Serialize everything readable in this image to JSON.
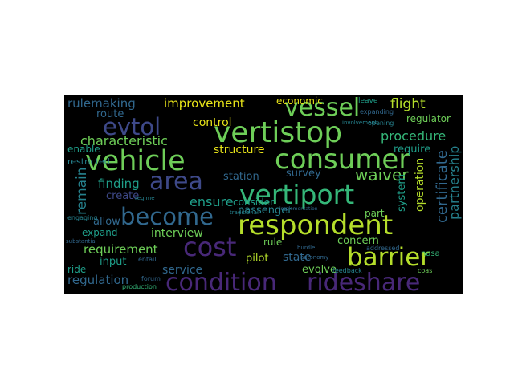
{
  "palette": {
    "lightgreen": "#b5de2b",
    "green": "#6ece58",
    "seagreen": "#35b779",
    "teal": "#1f9e89",
    "blue": "#26828e",
    "steel": "#31688e",
    "indigo": "#3e4989",
    "purple": "#482878",
    "dark": "#440154",
    "yellow": "#e8e419"
  },
  "words": [
    {
      "id": "condition",
      "text": "condition",
      "color": "purple"
    },
    {
      "id": "rideshare",
      "text": "rideshare",
      "color": "purple"
    },
    {
      "id": "barrier",
      "text": "barrier",
      "color": "lightgreen"
    },
    {
      "id": "respondent",
      "text": "respondent",
      "color": "lightgreen"
    },
    {
      "id": "vertiport",
      "text": "vertiport",
      "color": "seagreen"
    },
    {
      "id": "vertistop",
      "text": "vertistop",
      "color": "green"
    },
    {
      "id": "vessel",
      "text": "vessel",
      "color": "green"
    },
    {
      "id": "consumer",
      "text": "consumer",
      "color": "green"
    },
    {
      "id": "vehicle",
      "text": "vehicle",
      "color": "green"
    },
    {
      "id": "evtol",
      "text": "evtol",
      "color": "indigo"
    },
    {
      "id": "cost",
      "text": "cost",
      "color": "purple"
    },
    {
      "id": "area",
      "text": "area",
      "color": "indigo"
    },
    {
      "id": "become",
      "text": "become",
      "color": "steel"
    },
    {
      "id": "rulemaking",
      "text": "rulemaking",
      "color": "steel"
    },
    {
      "id": "improvement",
      "text": "improvement",
      "color": "yellow"
    },
    {
      "id": "economic",
      "text": "economic",
      "color": "yellow"
    },
    {
      "id": "flight",
      "text": "flight",
      "color": "lightgreen"
    },
    {
      "id": "route",
      "text": "route",
      "color": "steel"
    },
    {
      "id": "control",
      "text": "control",
      "color": "yellow"
    },
    {
      "id": "procedure",
      "text": "procedure",
      "color": "seagreen"
    },
    {
      "id": "regulator",
      "text": "regulator",
      "color": "green"
    },
    {
      "id": "require",
      "text": "require",
      "color": "teal"
    },
    {
      "id": "characteristic",
      "text": "characteristic",
      "color": "green"
    },
    {
      "id": "structure",
      "text": "structure",
      "color": "yellow"
    },
    {
      "id": "enable",
      "text": "enable",
      "color": "teal"
    },
    {
      "id": "restricted",
      "text": "restricted",
      "color": "blue"
    },
    {
      "id": "finding",
      "text": "finding",
      "color": "teal"
    },
    {
      "id": "survey",
      "text": "survey",
      "color": "steel"
    },
    {
      "id": "waiver",
      "text": "waiver",
      "color": "green"
    },
    {
      "id": "station",
      "text": "station",
      "color": "steel"
    },
    {
      "id": "create",
      "text": "create",
      "color": "indigo"
    },
    {
      "id": "ensure",
      "text": "ensure",
      "color": "teal"
    },
    {
      "id": "consider",
      "text": "consider",
      "color": "teal"
    },
    {
      "id": "passenger",
      "text": "passenger",
      "color": "blue"
    },
    {
      "id": "allow",
      "text": "allow",
      "color": "steel"
    },
    {
      "id": "expand",
      "text": "expand",
      "color": "teal"
    },
    {
      "id": "interview",
      "text": "interview",
      "color": "green"
    },
    {
      "id": "part",
      "text": "part",
      "color": "green"
    },
    {
      "id": "requirement",
      "text": "requirement",
      "color": "green"
    },
    {
      "id": "rule",
      "text": "rule",
      "color": "green"
    },
    {
      "id": "concern",
      "text": "concern",
      "color": "green"
    },
    {
      "id": "input",
      "text": "input",
      "color": "teal"
    },
    {
      "id": "state",
      "text": "state",
      "color": "steel"
    },
    {
      "id": "pilot",
      "text": "pilot",
      "color": "lightgreen"
    },
    {
      "id": "service",
      "text": "service",
      "color": "steel"
    },
    {
      "id": "evolve",
      "text": "evolve",
      "color": "green"
    },
    {
      "id": "ride",
      "text": "ride",
      "color": "teal"
    },
    {
      "id": "regulation",
      "text": "regulation",
      "color": "steel"
    },
    {
      "id": "nasa",
      "text": "nasa",
      "color": "seagreen"
    },
    {
      "id": "production",
      "text": "production",
      "color": "seagreen"
    },
    {
      "id": "regime",
      "text": "regime",
      "color": "blue"
    },
    {
      "id": "leave",
      "text": "leave",
      "color": "teal"
    },
    {
      "id": "opening",
      "text": "opening",
      "color": "blue"
    },
    {
      "id": "expanding",
      "text": "expanding",
      "color": "steel"
    },
    {
      "id": "feedback",
      "text": "feedback",
      "color": "blue"
    },
    {
      "id": "addressed",
      "text": "addressed",
      "color": "steel"
    },
    {
      "id": "coas",
      "text": "coas",
      "color": "green"
    },
    {
      "id": "autonomy",
      "text": "autonomy",
      "color": "steel"
    },
    {
      "id": "hurdle",
      "text": "hurdle",
      "color": "steel"
    },
    {
      "id": "implementation",
      "text": "implementation",
      "color": "steel"
    },
    {
      "id": "involvement",
      "text": "involvement",
      "color": "blue"
    },
    {
      "id": "traditional",
      "text": "traditional",
      "color": "blue"
    },
    {
      "id": "engaging",
      "text": "engaging",
      "color": "blue"
    },
    {
      "id": "substantial",
      "text": "substantial",
      "color": "steel"
    },
    {
      "id": "forum",
      "text": "forum",
      "color": "steel"
    },
    {
      "id": "entail",
      "text": "entail",
      "color": "steel"
    },
    {
      "id": "remain",
      "text": "remain",
      "color": "blue"
    },
    {
      "id": "certificate",
      "text": "certificate",
      "color": "steel"
    },
    {
      "id": "partnership",
      "text": "partnership",
      "color": "blue"
    },
    {
      "id": "operation",
      "text": "operation",
      "color": "lightgreen"
    },
    {
      "id": "system",
      "text": "system",
      "color": "teal"
    }
  ]
}
